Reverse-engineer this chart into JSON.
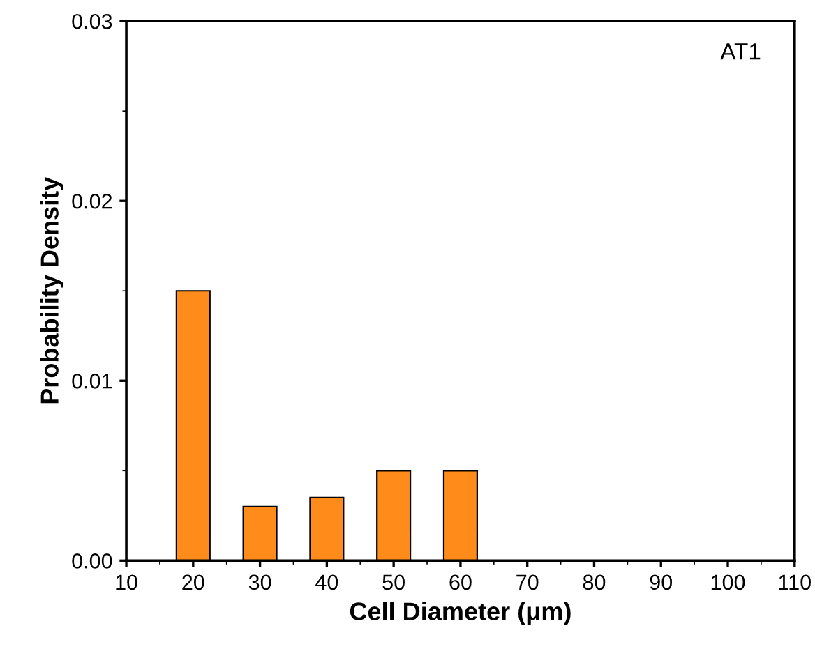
{
  "chart_data": {
    "type": "bar",
    "xlabel": "Cell Diameter (μm)",
    "ylabel": "Probability Density",
    "x": [
      20,
      30,
      40,
      50,
      60
    ],
    "series": [
      {
        "color": "#ff8c1a",
        "values": [
          0.015,
          0.003,
          0.0035,
          0.005,
          0.005
        ]
      }
    ],
    "xlim": [
      10,
      110
    ],
    "xticks": [
      10,
      20,
      30,
      40,
      50,
      60,
      70,
      80,
      90,
      100,
      110
    ],
    "ylim": [
      0,
      0.03
    ],
    "yticks": [
      {
        "value": 0,
        "label": "0.00"
      },
      {
        "value": 0.01,
        "label": "0.01"
      },
      {
        "value": 0.02,
        "label": "0.02"
      },
      {
        "value": 0.03,
        "label": "0.03"
      }
    ],
    "annotations": [
      "AT1"
    ],
    "grid": false
  }
}
